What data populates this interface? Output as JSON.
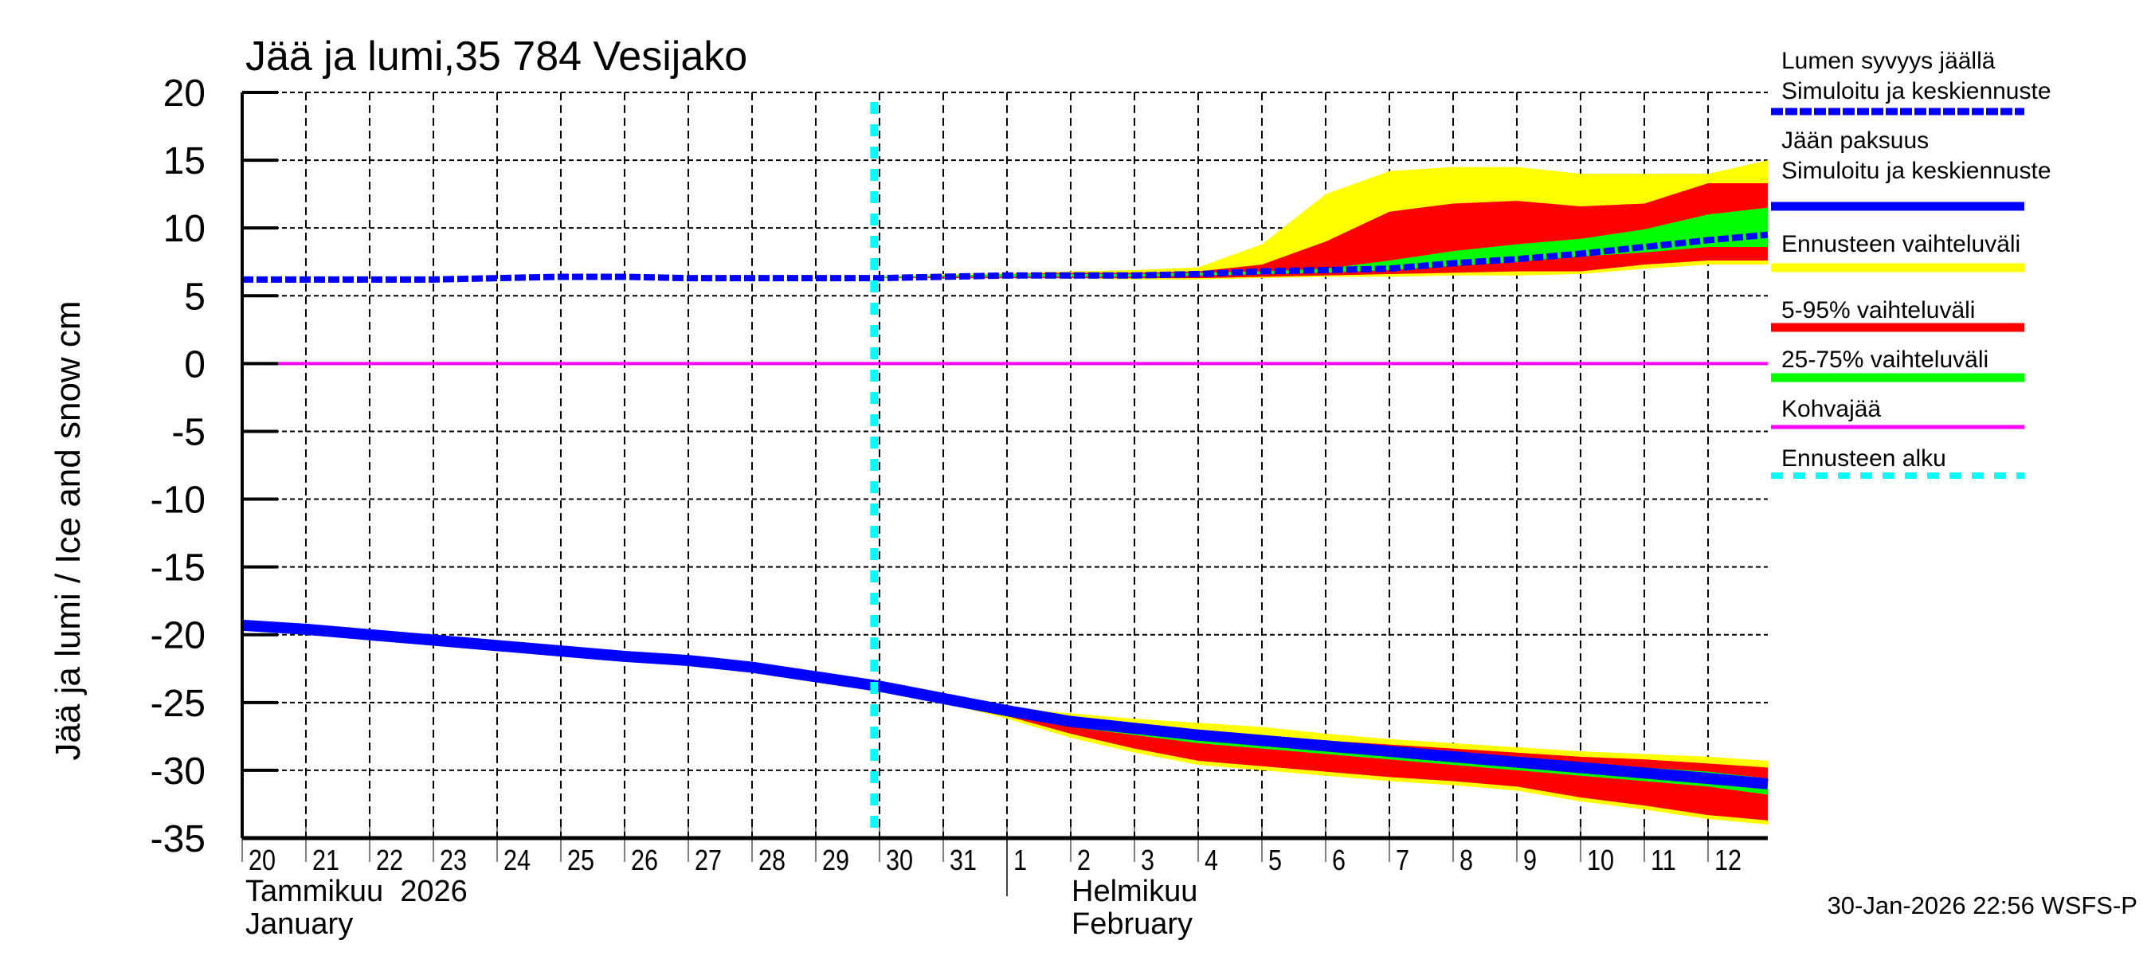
{
  "chart_data": {
    "type": "area",
    "title": "Jää ja lumi,35 784 Vesijako",
    "ylabel": "Jää ja lumi / Ice and snow    cm",
    "ylim": [
      -35,
      20
    ],
    "yticks": [
      "20",
      "15",
      "10",
      "5",
      "0",
      "-5",
      "-10",
      "-15",
      "-20",
      "-25",
      "-30",
      "-35"
    ],
    "xlim": [
      "2026-01-20T00:00",
      "2026-02-12T22:30"
    ],
    "xtick_days": [
      "20",
      "21",
      "22",
      "23",
      "24",
      "25",
      "26",
      "27",
      "28",
      "29",
      "30",
      "31",
      "1",
      "2",
      "3",
      "4",
      "5",
      "6",
      "7",
      "8",
      "9",
      "10",
      "11",
      "12"
    ],
    "month_labels": {
      "jan_fi": "Tammikuu  2026",
      "jan_en": "January",
      "feb_fi": "Helmikuu",
      "feb_en": "February"
    },
    "grid": true,
    "legend_position": "right",
    "forecast_start": "2026-01-29T22:00",
    "legend": {
      "snow_title": "Lumen syvyys jäällä",
      "snow_sub": "Simuloitu ja keskiennuste",
      "ice_title": "Jään paksuus",
      "ice_sub": "Simuloitu ja keskiennuste",
      "range_all": "Ennusteen vaihteluväli",
      "range_5_95": "5-95% vaihteluväli",
      "range_25_75": "25-75% vaihteluväli",
      "slush": "Kohvajää",
      "forecast_start": "Ennusteen alku"
    },
    "colors": {
      "snow": "#0000ff",
      "ice": "#0000ff",
      "range_all": "#ffff00",
      "range_5_95": "#ff0000",
      "range_25_75": "#00ff00",
      "slush": "#ff00ff",
      "forecast_start": "#00ffff"
    },
    "x_dates": [
      "2026-01-20",
      "2026-01-21",
      "2026-01-22",
      "2026-01-23",
      "2026-01-24",
      "2026-01-25",
      "2026-01-26",
      "2026-01-27",
      "2026-01-28",
      "2026-01-29",
      "2026-01-30",
      "2026-01-31",
      "2026-02-01",
      "2026-02-02",
      "2026-02-03",
      "2026-02-04",
      "2026-02-05",
      "2026-02-06",
      "2026-02-07",
      "2026-02-08",
      "2026-02-09",
      "2026-02-10",
      "2026-02-11",
      "2026-02-12",
      "2026-02-12T22:30"
    ],
    "snow_depth": [
      6.2,
      6.2,
      6.2,
      6.2,
      6.3,
      6.4,
      6.4,
      6.3,
      6.3,
      6.3,
      6.3,
      6.4,
      6.5,
      6.5,
      6.5,
      6.6,
      6.8,
      6.9,
      7.0,
      7.4,
      7.7,
      8.1,
      8.6,
      9.1,
      9.5
    ],
    "ice_thickness": [
      -19.3,
      -19.6,
      -20.0,
      -20.4,
      -20.8,
      -21.2,
      -21.6,
      -21.9,
      -22.4,
      -23.1,
      -23.8,
      -24.7,
      -25.6,
      -26.4,
      -26.9,
      -27.4,
      -27.8,
      -28.2,
      -28.6,
      -29.0,
      -29.4,
      -29.8,
      -30.2,
      -30.6,
      -31.0
    ],
    "forecast_x": [
      "2026-01-30",
      "2026-01-31",
      "2026-02-01",
      "2026-02-02",
      "2026-02-03",
      "2026-02-04",
      "2026-02-05",
      "2026-02-06",
      "2026-02-07",
      "2026-02-08",
      "2026-02-09",
      "2026-02-10",
      "2026-02-11",
      "2026-02-12",
      "2026-02-12T22:30"
    ],
    "snow_bands": {
      "range_all": {
        "upper": [
          6.4,
          6.6,
          6.7,
          6.8,
          6.9,
          7.1,
          8.8,
          12.5,
          14.2,
          14.5,
          14.5,
          14.0,
          14.0,
          14.0,
          15.0
        ],
        "lower": [
          6.3,
          6.3,
          6.3,
          6.3,
          6.2,
          6.2,
          6.3,
          6.4,
          6.4,
          6.5,
          6.5,
          6.6,
          7.0,
          7.3,
          7.3
        ]
      },
      "range_5_95": {
        "upper": [
          6.4,
          6.5,
          6.6,
          6.7,
          6.7,
          6.8,
          7.3,
          9.0,
          11.2,
          11.8,
          12.0,
          11.6,
          11.8,
          13.3,
          13.3
        ],
        "lower": [
          6.3,
          6.3,
          6.3,
          6.3,
          6.3,
          6.3,
          6.4,
          6.5,
          6.6,
          6.7,
          6.8,
          6.8,
          7.3,
          7.6,
          7.6
        ]
      },
      "range_25_75": {
        "upper": [
          6.4,
          6.5,
          6.6,
          6.6,
          6.6,
          6.7,
          6.8,
          7.0,
          7.6,
          8.3,
          8.8,
          9.2,
          9.9,
          11.0,
          11.5
        ],
        "lower": [
          6.3,
          6.4,
          6.4,
          6.4,
          6.4,
          6.5,
          6.6,
          6.7,
          6.9,
          7.2,
          7.5,
          7.9,
          8.2,
          8.6,
          8.6
        ]
      }
    },
    "ice_bands": {
      "range_all": {
        "upper": [
          -23.9,
          -24.7,
          -25.4,
          -25.8,
          -26.2,
          -26.5,
          -26.8,
          -27.3,
          -27.7,
          -28.0,
          -28.3,
          -28.6,
          -28.8,
          -29.0,
          -29.3
        ],
        "lower": [
          -23.9,
          -25.0,
          -26.2,
          -27.6,
          -28.7,
          -29.6,
          -30.0,
          -30.4,
          -30.8,
          -31.1,
          -31.5,
          -32.3,
          -32.9,
          -33.6,
          -34.0
        ]
      },
      "range_5_95": {
        "upper": [
          -23.9,
          -24.7,
          -25.5,
          -26.1,
          -26.5,
          -27.0,
          -27.4,
          -27.8,
          -28.1,
          -28.4,
          -28.7,
          -29.0,
          -29.2,
          -29.5,
          -29.8
        ],
        "lower": [
          -23.9,
          -24.9,
          -26.0,
          -27.3,
          -28.4,
          -29.3,
          -29.7,
          -30.1,
          -30.5,
          -30.8,
          -31.2,
          -32.0,
          -32.6,
          -33.3,
          -33.7
        ]
      },
      "range_25_75": {
        "upper": [
          -23.9,
          -24.7,
          -25.6,
          -26.3,
          -26.8,
          -27.3,
          -27.7,
          -28.1,
          -28.5,
          -28.8,
          -29.2,
          -29.5,
          -29.8,
          -30.1,
          -30.6
        ],
        "lower": [
          -23.9,
          -24.8,
          -25.7,
          -26.8,
          -27.4,
          -28.0,
          -28.4,
          -28.8,
          -29.2,
          -29.6,
          -30.0,
          -30.4,
          -30.8,
          -31.2,
          -31.8
        ]
      }
    },
    "slush": 0
  },
  "timestamp": "30-Jan-2026 22:56 WSFS-P"
}
